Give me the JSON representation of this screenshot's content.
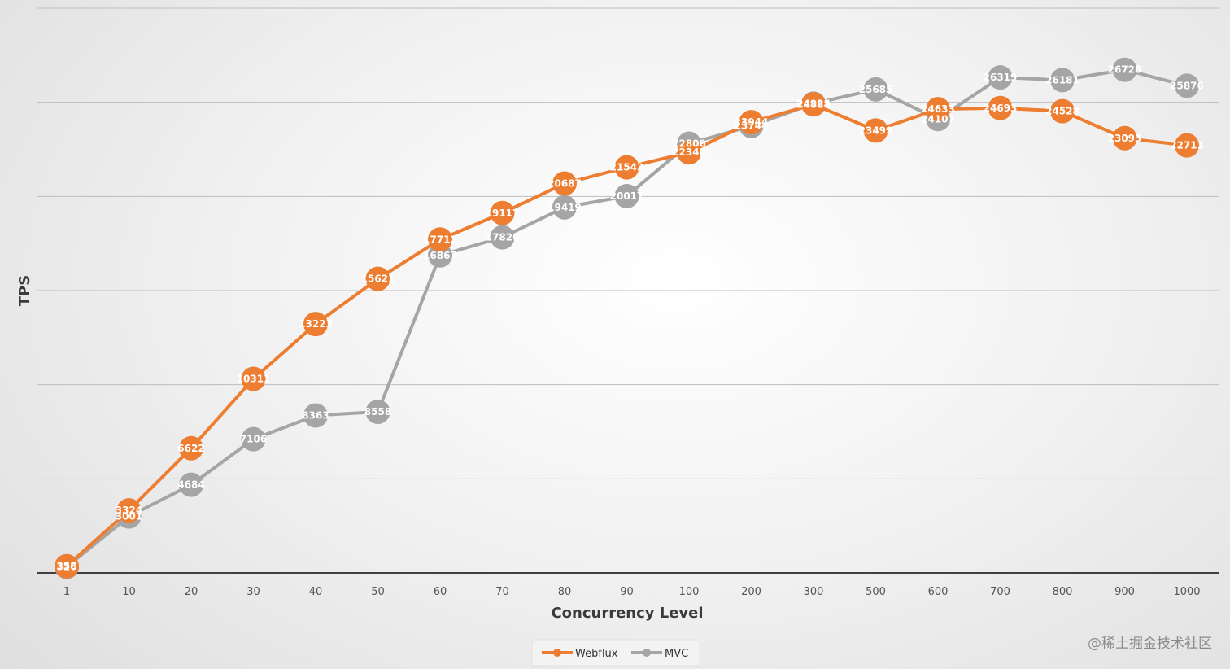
{
  "chart_data": {
    "type": "line",
    "categories": [
      "1",
      "10",
      "20",
      "30",
      "40",
      "50",
      "60",
      "70",
      "80",
      "90",
      "100",
      "200",
      "300",
      "500",
      "600",
      "700",
      "800",
      "900",
      "1000"
    ],
    "series": [
      {
        "name": "Webflux",
        "color": "#ED7D31",
        "values": [
          358,
          3324,
          6622,
          10311,
          13223,
          15621,
          17712,
          19117,
          20687,
          21543,
          22340,
          23944,
          24888,
          23499,
          24633,
          24693,
          24528,
          23093,
          22711
        ],
        "labels": [
          "358",
          "3324",
          "6622",
          "10311",
          "13223",
          "15621",
          "17712",
          "19117",
          "20687",
          "21543",
          "22340",
          "23944",
          "24888",
          "23499",
          "24633",
          "24693",
          "24528",
          "23093",
          "22711"
        ]
      },
      {
        "name": "MVC",
        "color": "#A5A5A5",
        "values": [
          326,
          3001,
          4684,
          7106,
          8363,
          8558,
          16867,
          17826,
          19419,
          20017,
          22800,
          23744,
          24925,
          25685,
          24107,
          26319,
          26181,
          26728,
          25876
        ],
        "labels": [
          "326",
          "3001",
          "4684",
          "7106",
          "8363",
          "8558",
          "16867",
          "17826",
          "19419",
          "20017",
          "22800",
          "23744",
          "24925",
          "25685",
          "24107",
          "26319",
          "26181",
          "26728",
          "25876"
        ]
      }
    ],
    "xlabel": "Concurrency Level",
    "ylabel": "TPS",
    "ylim": [
      0,
      30000
    ],
    "grid": true,
    "legend": "bottom-center",
    "watermark": "@稀土掘金技术社区"
  }
}
